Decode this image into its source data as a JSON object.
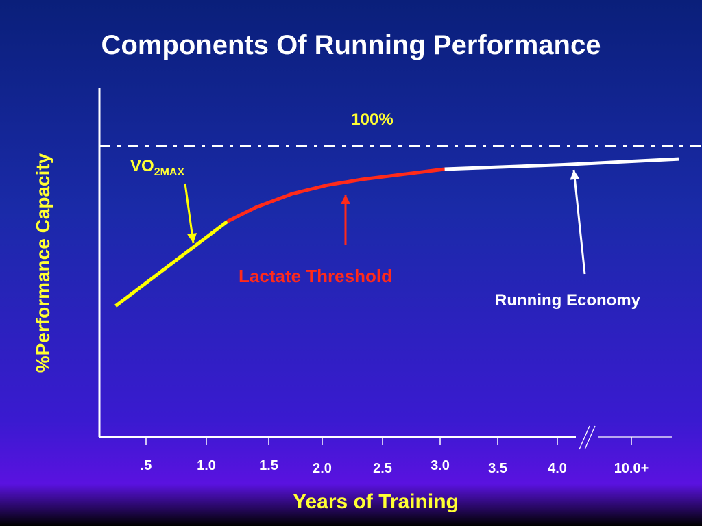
{
  "title": "Components Of Running Performance",
  "colors": {
    "vo2max": "#ffff00",
    "lactate": "#ff2a1a",
    "economy": "#ffffff",
    "label_yellow": "#ffff33",
    "label_red": "#ff2a1a",
    "axis": "#ffffff"
  },
  "chart_data": {
    "type": "line",
    "title": "Components Of Running Performance",
    "xlabel": "Years of Training",
    "ylabel": "%Performance Capacity",
    "x_tick_labels": [
      ".5",
      "1.0",
      "1.5",
      "2.0",
      "2.5",
      "3.0",
      "3.5",
      "4.0",
      "10.0+"
    ],
    "reference_line": {
      "label": "100%",
      "value": 100,
      "style": "dash-dot"
    },
    "series": [
      {
        "name": "VO2MAX",
        "color": "#ffff00",
        "points": [
          [
            0.2,
            45
          ],
          [
            1.15,
            74
          ]
        ]
      },
      {
        "name": "Lactate Threshold",
        "color": "#ff2a1a",
        "points": [
          [
            1.15,
            74
          ],
          [
            1.4,
            79
          ],
          [
            1.7,
            83.5
          ],
          [
            2.0,
            86.5
          ],
          [
            2.3,
            88.5
          ],
          [
            2.6,
            90
          ],
          [
            3.0,
            92
          ]
        ]
      },
      {
        "name": "Running Economy",
        "color": "#ffffff",
        "points": [
          [
            3.0,
            92
          ],
          [
            4.0,
            93.5
          ],
          [
            10.5,
            95.5
          ]
        ]
      }
    ],
    "annotations": [
      {
        "text": "VO",
        "subscript": "2MAX",
        "target_series": "VO2MAX"
      },
      {
        "text": "Lactate Threshold",
        "target_series": "Lactate Threshold"
      },
      {
        "text": "Running Economy",
        "target_series": "Running Economy"
      }
    ],
    "axis_break": true,
    "grid": false
  }
}
